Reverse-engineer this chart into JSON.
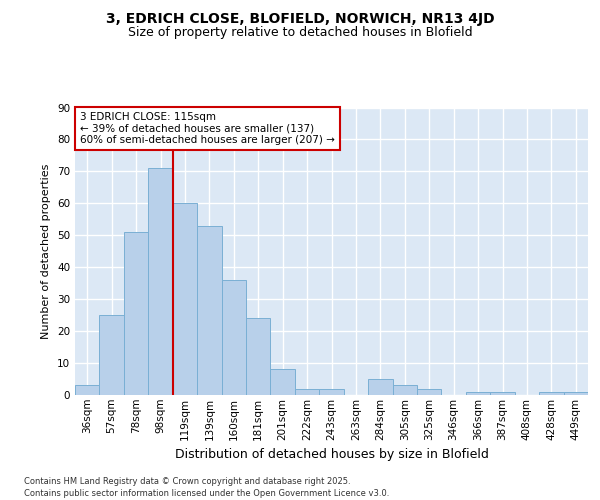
{
  "title1": "3, EDRICH CLOSE, BLOFIELD, NORWICH, NR13 4JD",
  "title2": "Size of property relative to detached houses in Blofield",
  "xlabel": "Distribution of detached houses by size in Blofield",
  "ylabel": "Number of detached properties",
  "categories": [
    "36sqm",
    "57sqm",
    "78sqm",
    "98sqm",
    "119sqm",
    "139sqm",
    "160sqm",
    "181sqm",
    "201sqm",
    "222sqm",
    "243sqm",
    "263sqm",
    "284sqm",
    "305sqm",
    "325sqm",
    "346sqm",
    "366sqm",
    "387sqm",
    "408sqm",
    "428sqm",
    "449sqm"
  ],
  "values": [
    3,
    25,
    51,
    71,
    60,
    53,
    36,
    24,
    8,
    2,
    2,
    0,
    5,
    3,
    2,
    0,
    1,
    1,
    0,
    1,
    1
  ],
  "bar_color": "#b8d0ea",
  "bar_edge_color": "#7aafd4",
  "fig_background": "#ffffff",
  "plot_background": "#dce8f5",
  "grid_color": "#ffffff",
  "vline_color": "#cc0000",
  "vline_x_index": 4,
  "annotation_text": "3 EDRICH CLOSE: 115sqm\n← 39% of detached houses are smaller (137)\n60% of semi-detached houses are larger (207) →",
  "annotation_box_facecolor": "#ffffff",
  "annotation_box_edgecolor": "#cc0000",
  "footer": "Contains HM Land Registry data © Crown copyright and database right 2025.\nContains public sector information licensed under the Open Government Licence v3.0.",
  "ylim": [
    0,
    90
  ],
  "yticks": [
    0,
    10,
    20,
    30,
    40,
    50,
    60,
    70,
    80,
    90
  ],
  "title1_fontsize": 10,
  "title2_fontsize": 9,
  "xlabel_fontsize": 9,
  "ylabel_fontsize": 8,
  "tick_fontsize": 7.5,
  "annotation_fontsize": 7.5,
  "footer_fontsize": 6
}
